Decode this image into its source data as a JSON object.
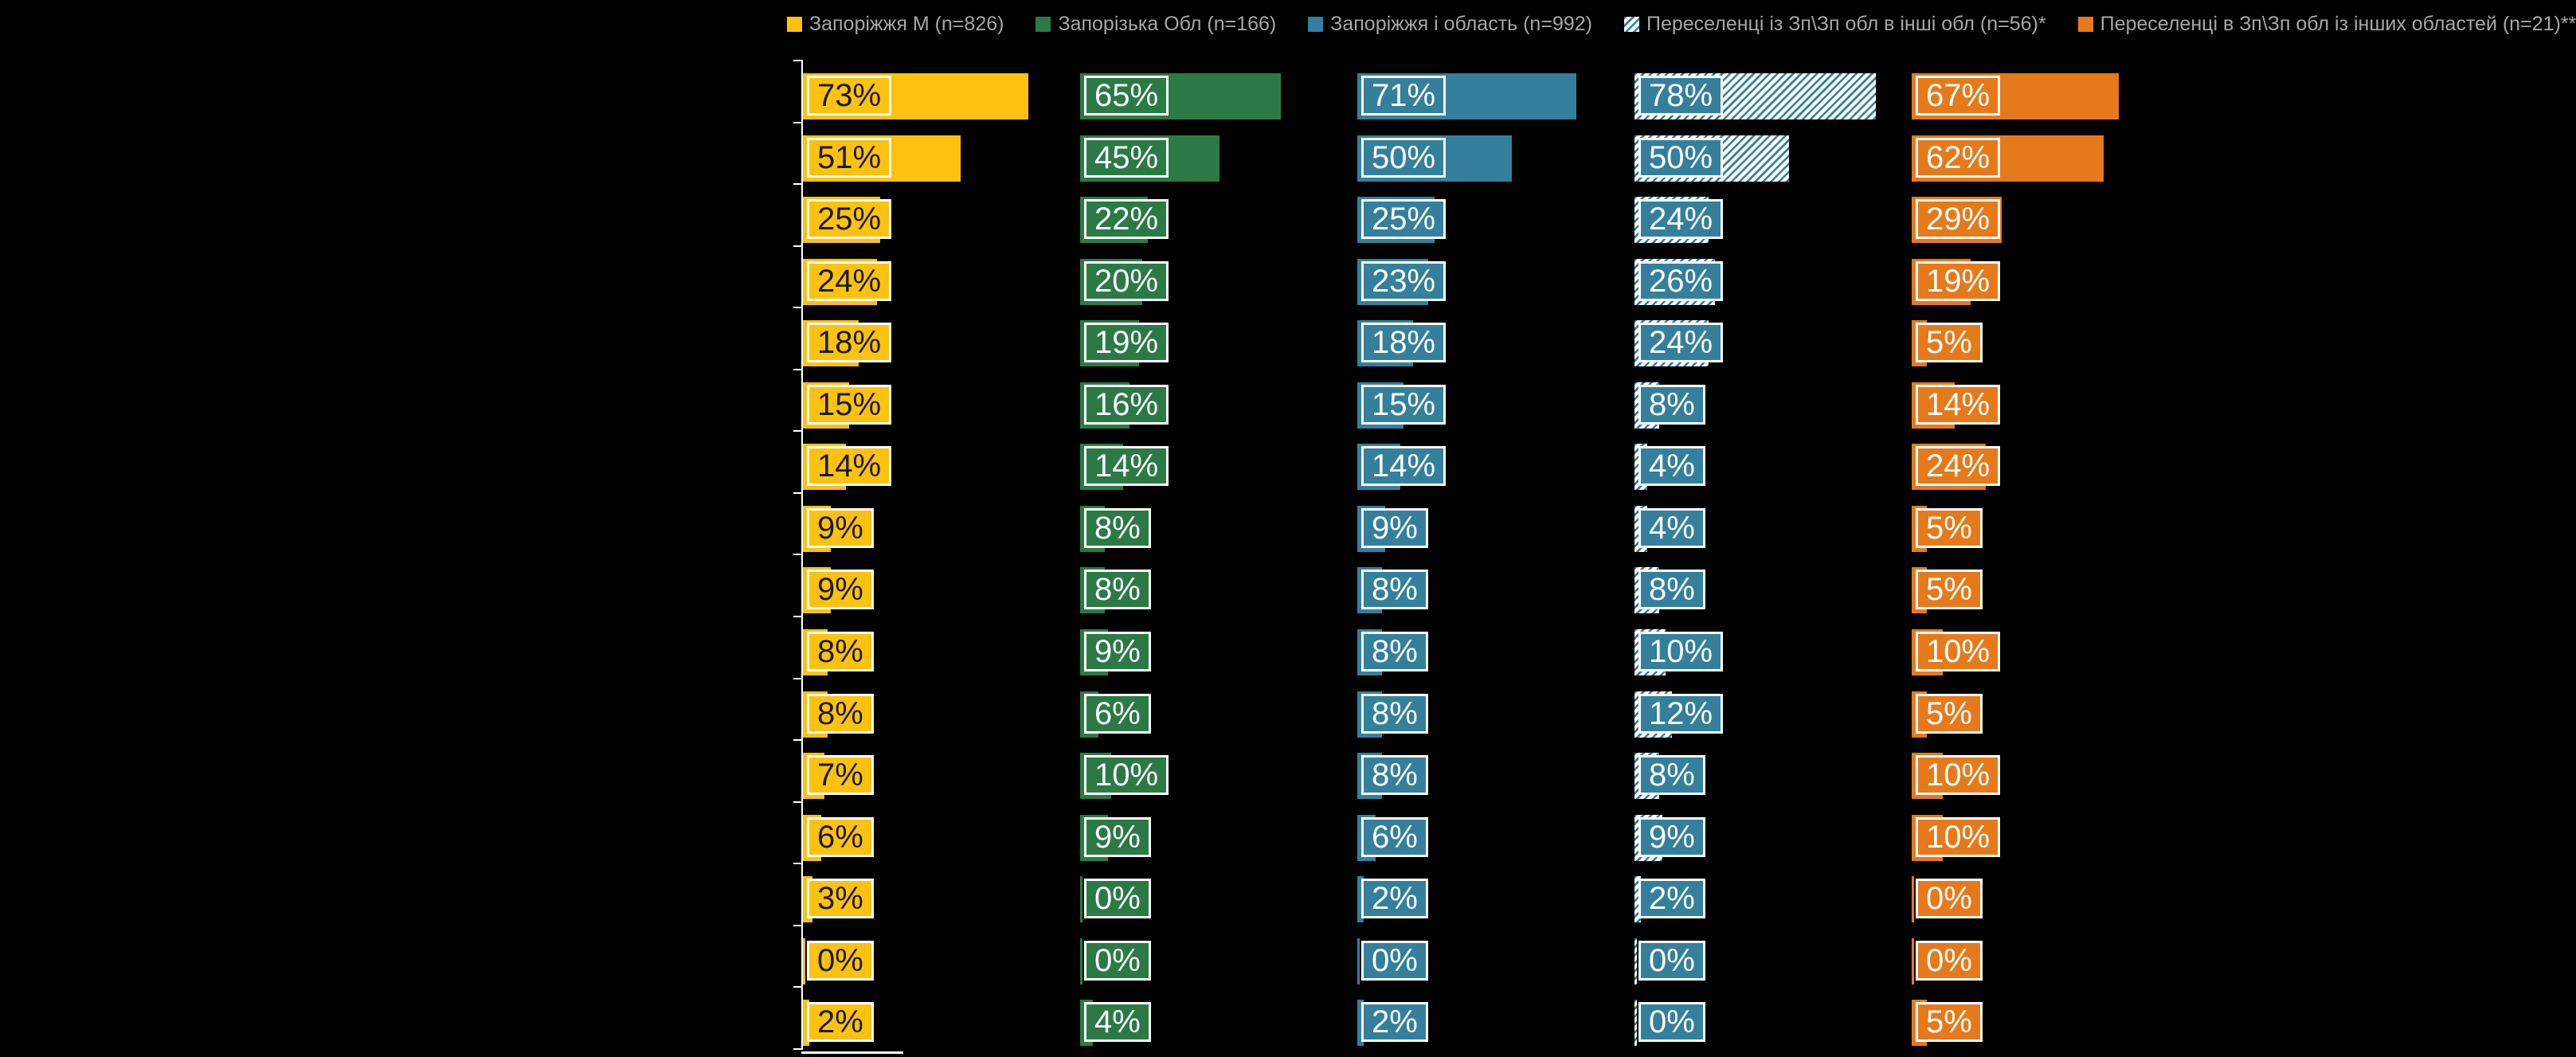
{
  "page": {
    "background_color": "#000000",
    "axis_color": "#FFFFFF",
    "category_labels_visible": false
  },
  "legend": {
    "text_color": "#A6A6A6",
    "position": "top"
  },
  "chart_data": {
    "type": "bar",
    "orientation": "horizontal",
    "value_unit": "%",
    "row_count": 16,
    "xlim": [
      0,
      90
    ],
    "grid": false,
    "legend_position": "top",
    "series": [
      {
        "name": "Запоріжжя М (n=826)",
        "color": "#FDC20F",
        "text_color": "#1A1A1A",
        "style": "solid",
        "values": [
          73,
          51,
          25,
          24,
          18,
          15,
          14,
          9,
          9,
          8,
          8,
          7,
          6,
          3,
          0,
          2
        ]
      },
      {
        "name": "Запорізька Обл (n=166)",
        "color": "#2B7A45",
        "text_color": "#FFFFFF",
        "style": "solid",
        "values": [
          65,
          45,
          22,
          20,
          19,
          16,
          14,
          8,
          8,
          9,
          6,
          10,
          9,
          0,
          0,
          4
        ]
      },
      {
        "name": "Запоріжжя і область (n=992)",
        "color": "#34809C",
        "text_color": "#FFFFFF",
        "style": "solid",
        "values": [
          71,
          50,
          25,
          23,
          18,
          15,
          14,
          9,
          8,
          8,
          8,
          8,
          6,
          2,
          0,
          2
        ]
      },
      {
        "name": "Переселенці із Зп\\Зп обл в інші обл (n=56)*",
        "color": "#34809C",
        "text_color": "#FFFFFF",
        "style": "hatched",
        "values": [
          78,
          50,
          24,
          26,
          24,
          8,
          4,
          4,
          8,
          10,
          12,
          8,
          9,
          2,
          0,
          0
        ]
      },
      {
        "name": "Переселенці в Зп\\Зп обл із інших областей (n=21)**",
        "color": "#E67A1B",
        "text_color": "#FFFFFF",
        "style": "solid",
        "values": [
          67,
          62,
          29,
          19,
          5,
          14,
          24,
          5,
          5,
          10,
          5,
          10,
          10,
          0,
          0,
          5
        ]
      }
    ]
  }
}
